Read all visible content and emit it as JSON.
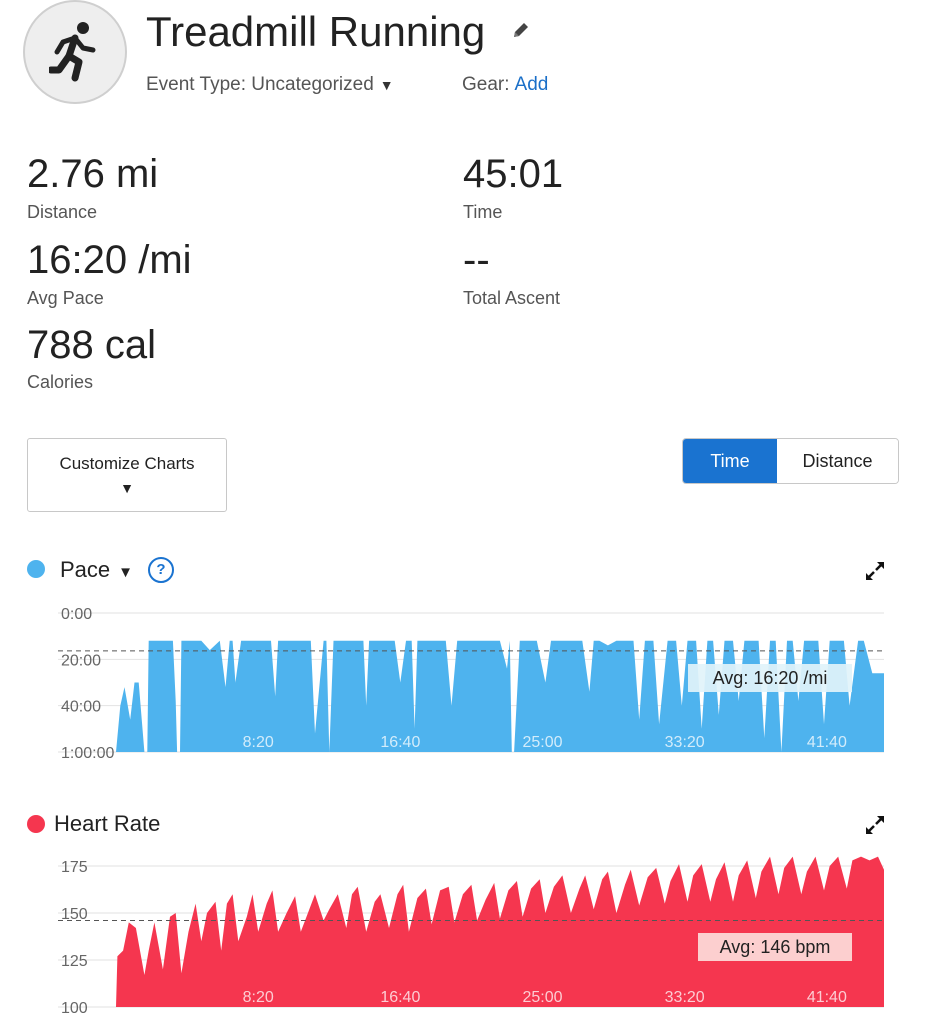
{
  "header": {
    "title": "Treadmill Running",
    "event_type_label": "Event Type: Uncategorized",
    "gear_label": "Gear:",
    "gear_link": "Add"
  },
  "icons": {
    "activity": "running-person-icon",
    "edit": "pencil-icon",
    "dropdown": "caret-down-icon",
    "help": "question-circle-icon",
    "expand": "expand-arrows-icon"
  },
  "stats": {
    "distance": {
      "value": "2.76 mi",
      "label": "Distance"
    },
    "time": {
      "value": "45:01",
      "label": "Time"
    },
    "avg_pace": {
      "value": "16:20 /mi",
      "label": "Avg Pace"
    },
    "total_ascent": {
      "value": "--",
      "label": "Total Ascent"
    },
    "calories": {
      "value": "788 cal",
      "label": "Calories"
    }
  },
  "controls": {
    "customize_label": "Customize Charts",
    "toggle_time": "Time",
    "toggle_distance": "Distance",
    "active_toggle": "Time"
  },
  "colors": {
    "pace": "#4eb3ee",
    "heart_rate": "#f5364f",
    "accent": "#1a73d0",
    "link": "#1a6fc8"
  },
  "chart_data": [
    {
      "type": "area",
      "title": "Pace",
      "y_tick_labels": [
        "0:00",
        "20:00",
        "40:00",
        "1:00:00"
      ],
      "y_ticks_minutes": [
        0,
        20,
        40,
        60
      ],
      "y_range_minutes": [
        0,
        60
      ],
      "y_inverted": true,
      "x_range_seconds": [
        0,
        2701
      ],
      "x_tick_labels": [
        "8:20",
        "16:40",
        "25:00",
        "33:20",
        "41:40"
      ],
      "x_ticks_seconds": [
        500,
        1000,
        1500,
        2000,
        2500
      ],
      "avg_label": "Avg: 16:20 /mi",
      "avg_minutes": 16.33,
      "series": [
        {
          "x_seconds": [
            0,
            15,
            30,
            50,
            65,
            80,
            100,
            110,
            115,
            130,
            150,
            180,
            200,
            210,
            215,
            225,
            230,
            245,
            265,
            300,
            330,
            365,
            385,
            400,
            410,
            420,
            440,
            460,
            490,
            520,
            545,
            560,
            570,
            590,
            615,
            640,
            660,
            685,
            700,
            730,
            740,
            750,
            765,
            790,
            820,
            845,
            870,
            880,
            890,
            900,
            920,
            950,
            980,
            1000,
            1020,
            1040,
            1050,
            1060,
            1080,
            1100,
            1130,
            1160,
            1180,
            1200,
            1220,
            1240,
            1260,
            1290,
            1320,
            1350,
            1375,
            1385,
            1392,
            1400,
            1420,
            1450,
            1480,
            1510,
            1530,
            1550,
            1580,
            1610,
            1640,
            1665,
            1680,
            1700,
            1730,
            1760,
            1790,
            1820,
            1840,
            1860,
            1890,
            1910,
            1940,
            1970,
            1990,
            2010,
            2040,
            2060,
            2080,
            2100,
            2120,
            2140,
            2170,
            2190,
            2210,
            2230,
            2260,
            2280,
            2300,
            2320,
            2340,
            2360,
            2380,
            2400,
            2420,
            2440,
            2470,
            2490,
            2510,
            2530,
            2560,
            2580,
            2610,
            2630,
            2660,
            2701
          ],
          "y_minutes": [
            60,
            40,
            32,
            46,
            30,
            30,
            60,
            60,
            12,
            12,
            12,
            12,
            12,
            38,
            60,
            60,
            12,
            12,
            12,
            12,
            16,
            12,
            32,
            12,
            12,
            30,
            12,
            12,
            12,
            12,
            12,
            36,
            12,
            12,
            12,
            12,
            12,
            12,
            52,
            12,
            12,
            60,
            12,
            12,
            12,
            12,
            12,
            40,
            12,
            12,
            12,
            12,
            12,
            30,
            12,
            12,
            50,
            12,
            12,
            12,
            12,
            12,
            40,
            12,
            12,
            12,
            12,
            12,
            12,
            12,
            24,
            12,
            60,
            60,
            12,
            12,
            12,
            30,
            12,
            12,
            12,
            12,
            12,
            34,
            12,
            12,
            14,
            12,
            12,
            12,
            46,
            12,
            12,
            48,
            12,
            12,
            40,
            12,
            12,
            50,
            12,
            12,
            44,
            12,
            12,
            38,
            12,
            12,
            12,
            54,
            12,
            12,
            60,
            12,
            12,
            38,
            12,
            12,
            12,
            48,
            12,
            12,
            12,
            40,
            12,
            12,
            26,
            26
          ]
        }
      ]
    },
    {
      "type": "area",
      "title": "Heart Rate",
      "y_ticks": [
        100,
        125,
        150,
        175
      ],
      "y_range": [
        100,
        182
      ],
      "x_range_seconds": [
        0,
        2701
      ],
      "x_tick_labels": [
        "8:20",
        "16:40",
        "25:00",
        "33:20",
        "41:40"
      ],
      "x_ticks_seconds": [
        500,
        1000,
        1500,
        2000,
        2500
      ],
      "avg_label": "Avg: 146 bpm",
      "avg_value": 146,
      "series": [
        {
          "x_seconds": [
            0,
            5,
            25,
            45,
            70,
            100,
            115,
            135,
            165,
            190,
            210,
            230,
            255,
            280,
            300,
            320,
            350,
            370,
            390,
            410,
            430,
            460,
            480,
            500,
            530,
            550,
            570,
            600,
            630,
            650,
            670,
            700,
            730,
            750,
            780,
            810,
            830,
            850,
            880,
            910,
            930,
            960,
            990,
            1010,
            1030,
            1060,
            1090,
            1110,
            1140,
            1170,
            1190,
            1220,
            1250,
            1270,
            1300,
            1330,
            1350,
            1380,
            1410,
            1430,
            1460,
            1490,
            1510,
            1540,
            1570,
            1600,
            1630,
            1650,
            1680,
            1710,
            1730,
            1760,
            1790,
            1810,
            1840,
            1870,
            1900,
            1930,
            1950,
            1980,
            2010,
            2030,
            2060,
            2090,
            2110,
            2140,
            2170,
            2190,
            2220,
            2250,
            2270,
            2300,
            2330,
            2350,
            2380,
            2410,
            2430,
            2460,
            2490,
            2510,
            2540,
            2570,
            2590,
            2620,
            2650,
            2680,
            2701
          ],
          "y": [
            100,
            127,
            130,
            145,
            142,
            117,
            130,
            145,
            120,
            148,
            150,
            118,
            140,
            155,
            135,
            150,
            156,
            130,
            155,
            160,
            135,
            148,
            160,
            140,
            155,
            162,
            140,
            150,
            159,
            140,
            148,
            160,
            146,
            152,
            160,
            142,
            160,
            164,
            140,
            156,
            160,
            142,
            160,
            165,
            140,
            158,
            163,
            144,
            162,
            164,
            145,
            160,
            165,
            146,
            157,
            166,
            147,
            162,
            167,
            148,
            163,
            168,
            150,
            164,
            170,
            150,
            163,
            170,
            152,
            168,
            172,
            150,
            165,
            173,
            154,
            169,
            174,
            155,
            167,
            176,
            156,
            170,
            176,
            156,
            168,
            177,
            156,
            170,
            178,
            158,
            172,
            180,
            160,
            174,
            180,
            160,
            172,
            180,
            162,
            175,
            180,
            163,
            178,
            180,
            178,
            180,
            173
          ]
        }
      ]
    }
  ]
}
